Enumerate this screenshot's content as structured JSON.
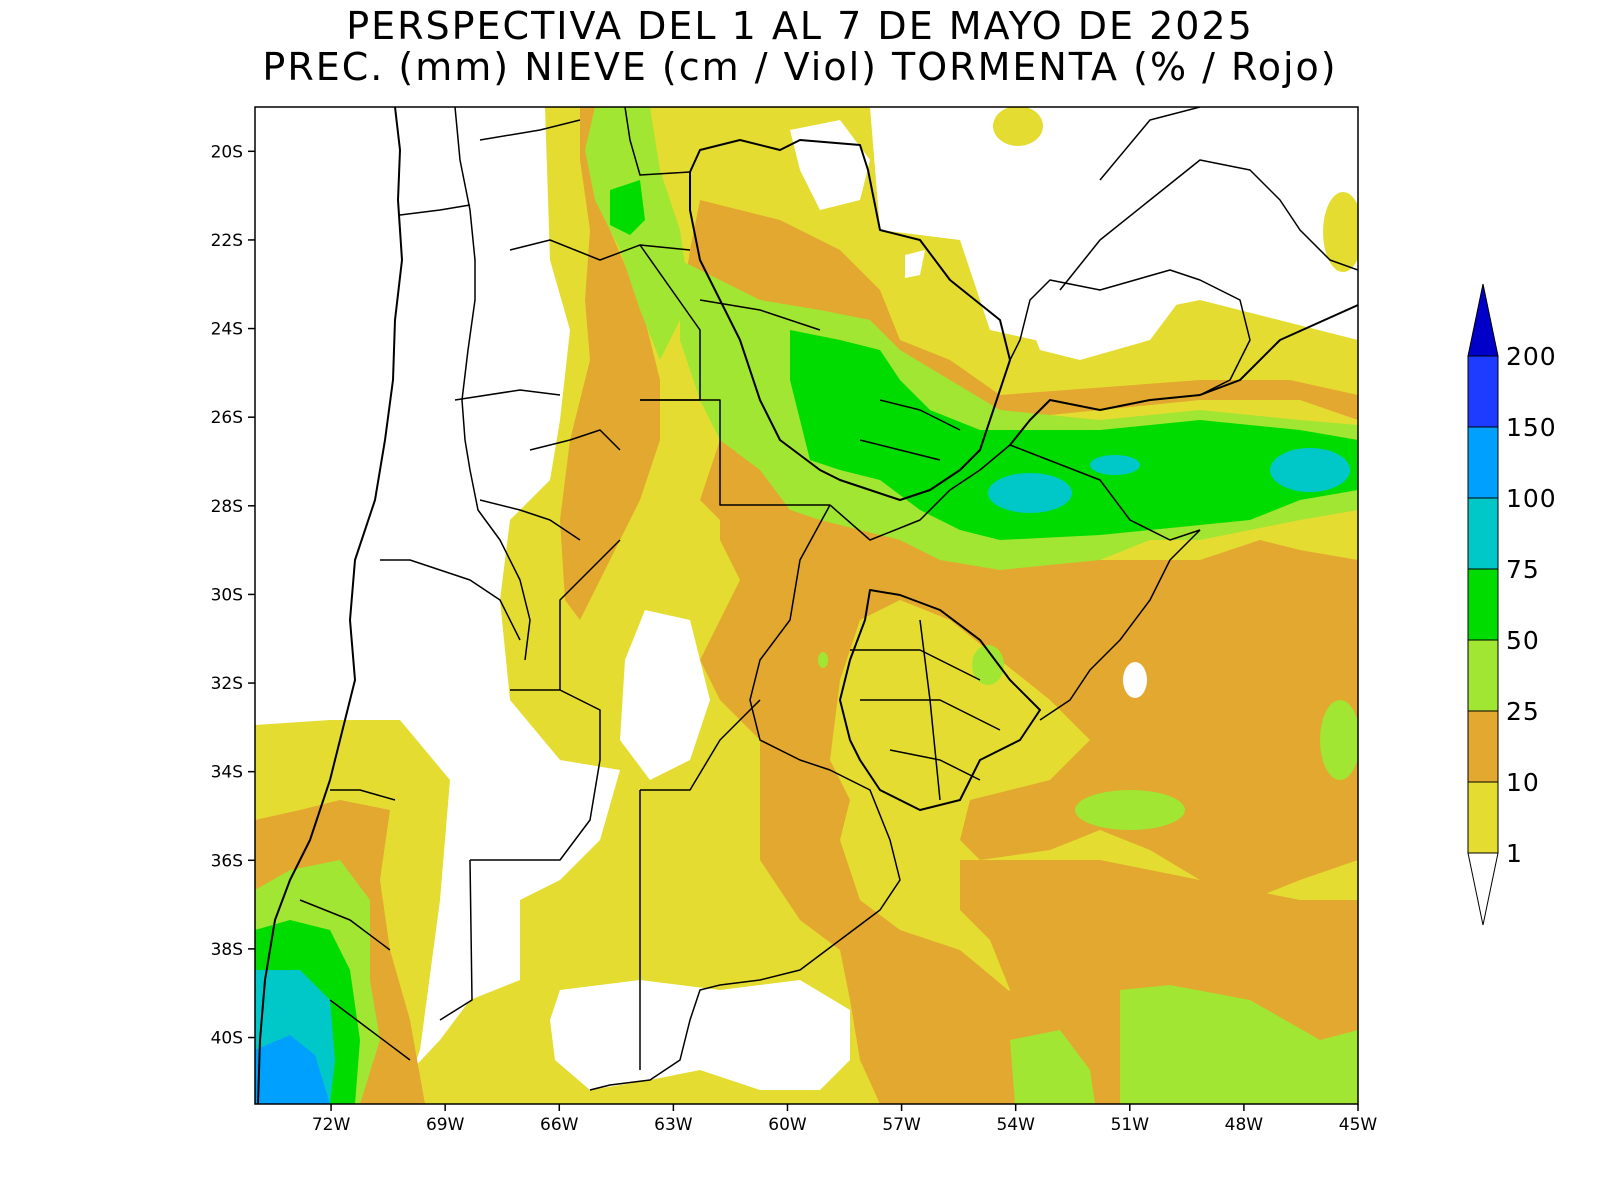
{
  "title": {
    "line1": "PERSPECTIVA DEL 1 AL 7 DE MAYO DE 2025",
    "line2": "PREC. (mm) NIEVE (cm / Viol) TORMENTA (% / Rojo)"
  },
  "map": {
    "region": "South America (southern cone)",
    "lon_range": [
      -74.0,
      -45.0
    ],
    "lat_range": [
      -41.5,
      -19.0
    ],
    "lon_ticks": [
      {
        "value": -72,
        "label": "72W"
      },
      {
        "value": -69,
        "label": "69W"
      },
      {
        "value": -66,
        "label": "66W"
      },
      {
        "value": -63,
        "label": "63W"
      },
      {
        "value": -60,
        "label": "60W"
      },
      {
        "value": -57,
        "label": "57W"
      },
      {
        "value": -54,
        "label": "54W"
      },
      {
        "value": -51,
        "label": "51W"
      },
      {
        "value": -48,
        "label": "48W"
      },
      {
        "value": -45,
        "label": "45W"
      }
    ],
    "lat_ticks": [
      {
        "value": -20,
        "label": "20S"
      },
      {
        "value": -22,
        "label": "22S"
      },
      {
        "value": -24,
        "label": "24S"
      },
      {
        "value": -26,
        "label": "26S"
      },
      {
        "value": -28,
        "label": "28S"
      },
      {
        "value": -30,
        "label": "30S"
      },
      {
        "value": -32,
        "label": "32S"
      },
      {
        "value": -34,
        "label": "34S"
      },
      {
        "value": -36,
        "label": "36S"
      },
      {
        "value": -38,
        "label": "38S"
      },
      {
        "value": -40,
        "label": "40S"
      }
    ]
  },
  "legend": {
    "levels": [
      {
        "label": "1",
        "color": "#e5dc32"
      },
      {
        "label": "10",
        "color": "#e3a82f"
      },
      {
        "label": "25",
        "color": "#a1e632"
      },
      {
        "label": "50",
        "color": "#00dc00"
      },
      {
        "label": "75",
        "color": "#00c8c8"
      },
      {
        "label": "100",
        "color": "#00a0ff"
      },
      {
        "label": "150",
        "color": "#1e3cff"
      },
      {
        "label": "200",
        "color": "#0000c8"
      }
    ],
    "above_color": "#0000c8",
    "below_color": "#ffffff"
  }
}
